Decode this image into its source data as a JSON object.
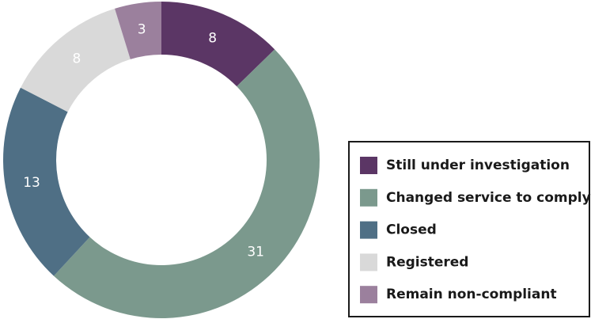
{
  "chart_data": {
    "type": "donut",
    "categories": [
      "Still under investigation",
      "Changed service to comply",
      "Closed",
      "Registered",
      "Remain non-compliant"
    ],
    "values": [
      8,
      31,
      13,
      8,
      3
    ],
    "colors": [
      "#5b3665",
      "#7b998d",
      "#4f6f85",
      "#d9d9d9",
      "#9b809d"
    ]
  }
}
